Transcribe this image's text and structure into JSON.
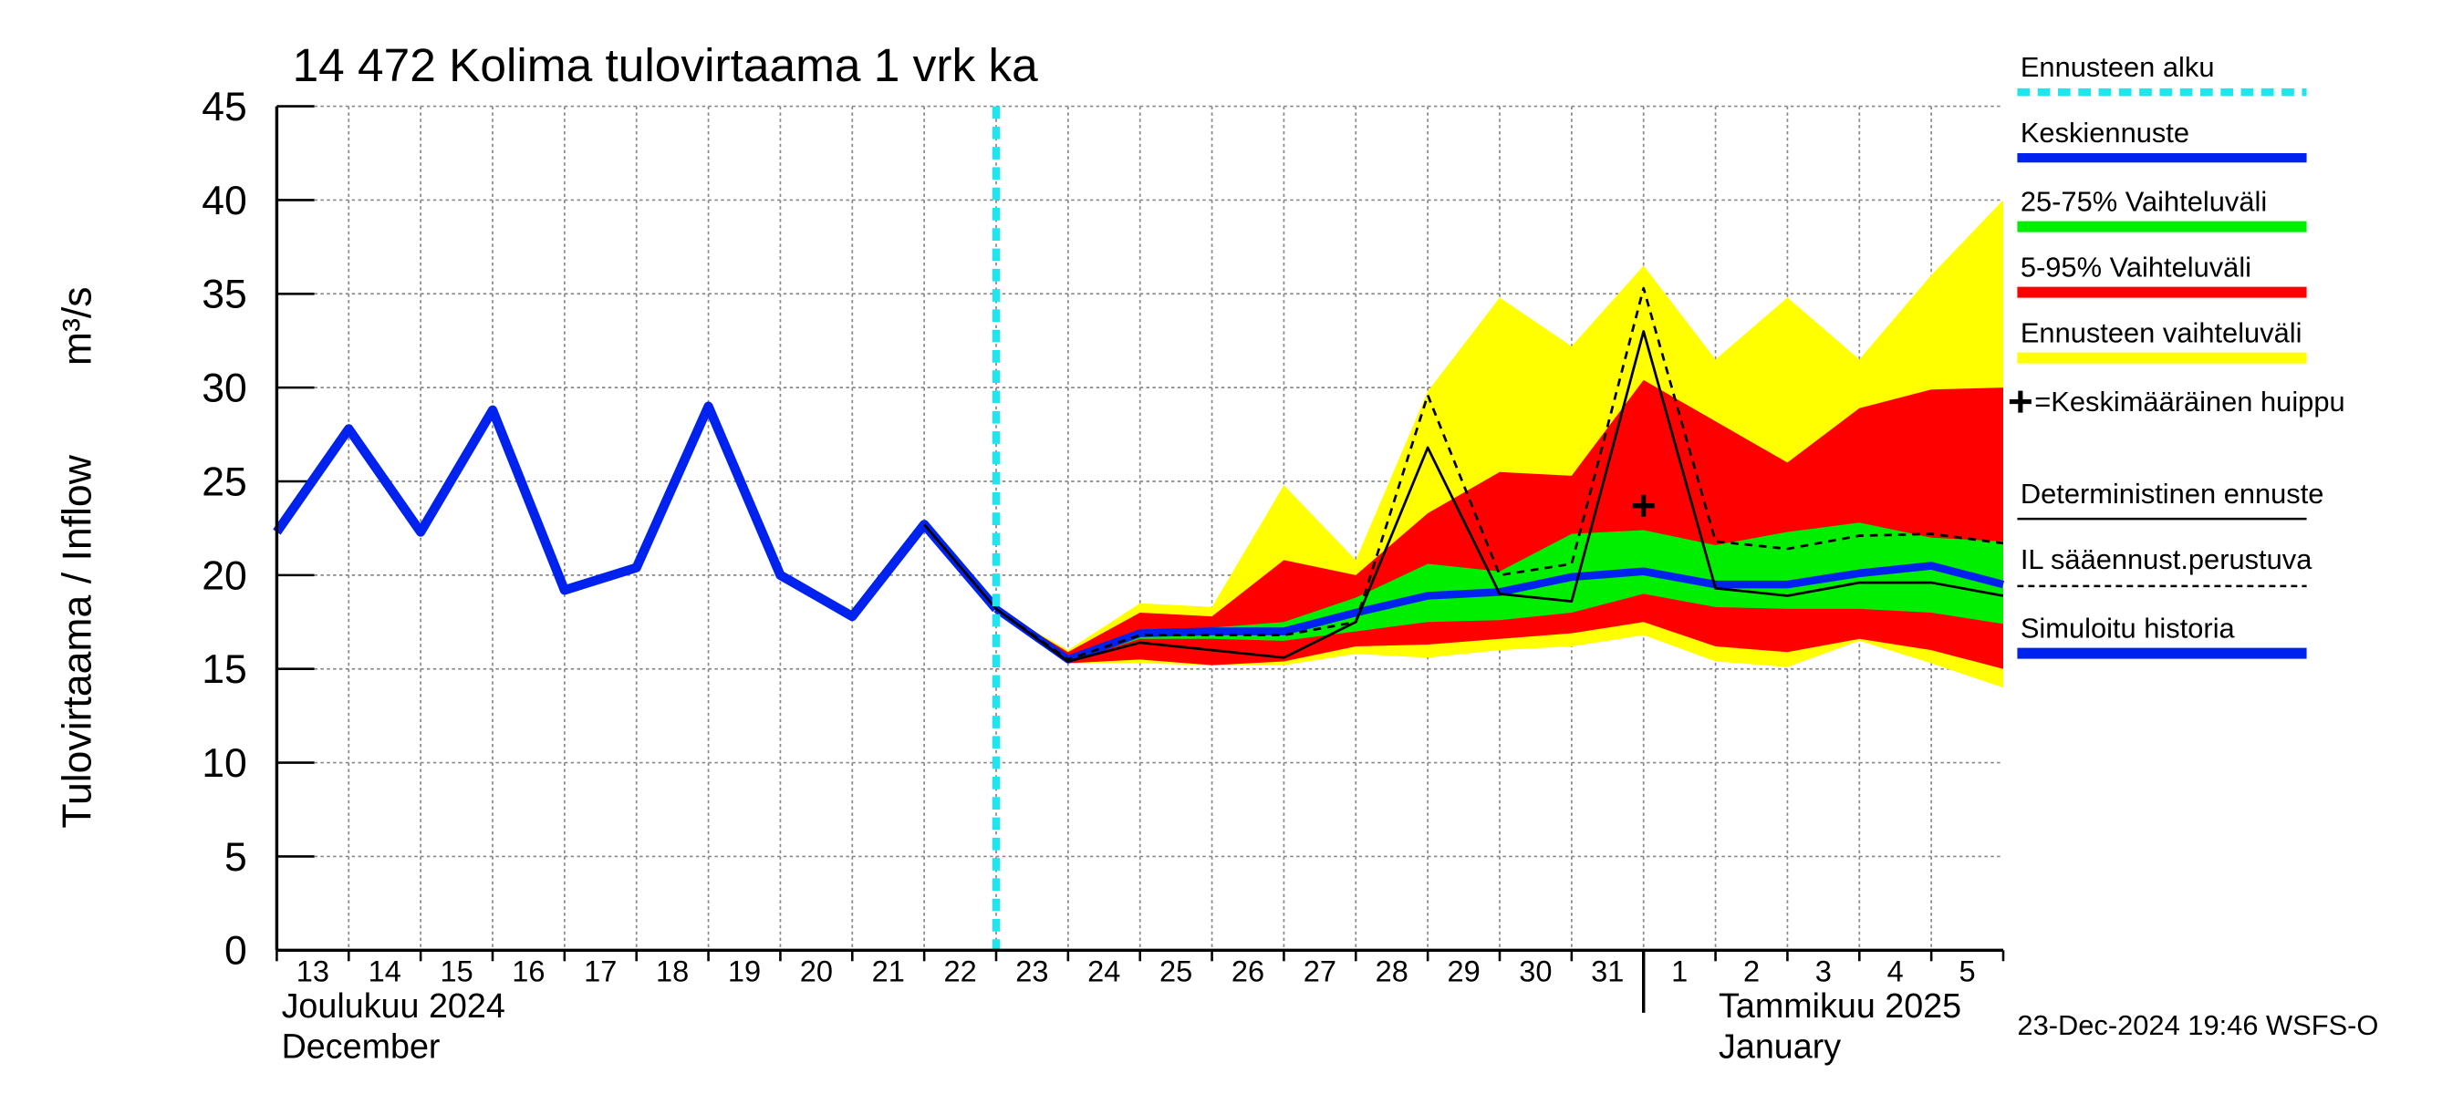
{
  "chart_data": {
    "type": "line",
    "title": "14 472 Kolima tulovirtaama 1 vrk ka",
    "y_label": "Tulovirtaama / Inflow",
    "y_unit": "m³/s",
    "x": [
      "2024-12-13",
      "2024-12-14",
      "2024-12-15",
      "2024-12-16",
      "2024-12-17",
      "2024-12-18",
      "2024-12-19",
      "2024-12-20",
      "2024-12-21",
      "2024-12-22",
      "2024-12-23",
      "2024-12-24",
      "2024-12-25",
      "2024-12-26",
      "2024-12-27",
      "2024-12-28",
      "2024-12-29",
      "2024-12-30",
      "2024-12-31",
      "2025-01-01",
      "2025-01-02",
      "2025-01-03",
      "2025-01-04",
      "2025-01-05",
      "2025-01-06"
    ],
    "xtick_labels": [
      "13",
      "14",
      "15",
      "16",
      "17",
      "18",
      "19",
      "20",
      "21",
      "22",
      "23",
      "24",
      "25",
      "26",
      "27",
      "28",
      "29",
      "30",
      "31",
      "1",
      "2",
      "3",
      "4",
      "5"
    ],
    "month_labels": [
      {
        "text": "Joulukuu  2024",
        "sub": "December",
        "x": "2024-12-13"
      },
      {
        "text": "Tammikuu  2025",
        "sub": "January",
        "x": "2025-01-01"
      }
    ],
    "ylim": [
      0,
      45
    ],
    "yticks": [
      0,
      5,
      10,
      15,
      20,
      25,
      30,
      35,
      40,
      45
    ],
    "grid": true,
    "forecast_start": {
      "name": "Ennusteen alku",
      "color": "#22e4ec",
      "x": "2024-12-23"
    },
    "bands": [
      {
        "name": "Ennusteen vaihteluväli",
        "color": "#ffff00",
        "upper": [
          null,
          null,
          null,
          null,
          null,
          null,
          null,
          null,
          null,
          null,
          18.2,
          16.0,
          18.5,
          18.3,
          24.8,
          20.8,
          29.8,
          34.8,
          32.2,
          36.5,
          31.5,
          34.8,
          31.5,
          36.0,
          40.0
        ],
        "lower": [
          null,
          null,
          null,
          null,
          null,
          null,
          null,
          null,
          null,
          null,
          18.2,
          15.3,
          15.3,
          15.2,
          15.2,
          15.8,
          15.6,
          16.0,
          16.2,
          16.8,
          15.4,
          15.1,
          16.5,
          15.3,
          14.0
        ]
      },
      {
        "name": "5-95% Vaihteluväli",
        "color": "#ff0000",
        "upper": [
          null,
          null,
          null,
          null,
          null,
          null,
          null,
          null,
          null,
          null,
          18.2,
          15.9,
          18.0,
          17.8,
          20.8,
          20.0,
          23.3,
          25.5,
          25.3,
          30.4,
          28.2,
          26.0,
          28.9,
          29.9,
          30.0
        ],
        "lower": [
          null,
          null,
          null,
          null,
          null,
          null,
          null,
          null,
          null,
          null,
          18.2,
          15.3,
          15.5,
          15.2,
          15.4,
          16.2,
          16.3,
          16.6,
          16.9,
          17.5,
          16.2,
          15.9,
          16.6,
          16.0,
          15.0
        ]
      },
      {
        "name": "25-75% Vaihteluväli",
        "color": "#00ee00",
        "upper": [
          null,
          null,
          null,
          null,
          null,
          null,
          null,
          null,
          null,
          null,
          18.2,
          15.7,
          17.0,
          17.2,
          17.5,
          18.8,
          20.6,
          20.2,
          22.2,
          22.4,
          21.6,
          22.3,
          22.8,
          22.0,
          21.8
        ],
        "lower": [
          null,
          null,
          null,
          null,
          null,
          null,
          null,
          null,
          null,
          null,
          18.2,
          15.4,
          16.6,
          16.6,
          16.5,
          17.0,
          17.5,
          17.6,
          18.0,
          19.0,
          18.3,
          18.2,
          18.2,
          18.0,
          17.4
        ]
      }
    ],
    "series": [
      {
        "name": "Simuloitu historia",
        "color": "#0022ee",
        "style": "thick",
        "values": [
          22.3,
          27.8,
          22.3,
          28.8,
          19.2,
          20.4,
          29.0,
          20.0,
          17.8,
          22.7,
          18.2,
          null,
          null,
          null,
          null,
          null,
          null,
          null,
          null,
          null,
          null,
          null,
          null,
          null,
          null
        ]
      },
      {
        "name": "Keskiennuste",
        "color": "#0022ee",
        "style": "medium",
        "values": [
          null,
          null,
          null,
          null,
          null,
          null,
          null,
          null,
          null,
          null,
          18.2,
          15.5,
          16.9,
          17.0,
          17.0,
          18.0,
          18.9,
          19.1,
          19.9,
          20.2,
          19.5,
          19.5,
          20.1,
          20.5,
          19.5
        ]
      },
      {
        "name": "Deterministinen ennuste",
        "color": "#000000",
        "style": "thin",
        "values": [
          null,
          null,
          null,
          null,
          null,
          null,
          null,
          null,
          null,
          22.7,
          18.2,
          15.4,
          16.4,
          16.0,
          15.6,
          17.5,
          26.8,
          19.0,
          18.6,
          33.0,
          19.3,
          18.9,
          19.6,
          19.6,
          18.9
        ]
      },
      {
        "name": "IL sääennust.perustuva",
        "color": "#000000",
        "style": "dashed",
        "values": [
          null,
          null,
          null,
          null,
          null,
          null,
          null,
          null,
          null,
          null,
          18.2,
          15.5,
          16.8,
          16.8,
          16.8,
          17.5,
          29.6,
          20.0,
          20.6,
          35.3,
          21.8,
          21.4,
          22.1,
          22.2,
          21.7
        ]
      }
    ],
    "peak": {
      "name": "=Keskimääräinen huippu",
      "color": "#000000",
      "x": "2025-01-01",
      "value": 23.7
    },
    "footer": "23-Dec-2024 19:46 WSFS-O"
  }
}
